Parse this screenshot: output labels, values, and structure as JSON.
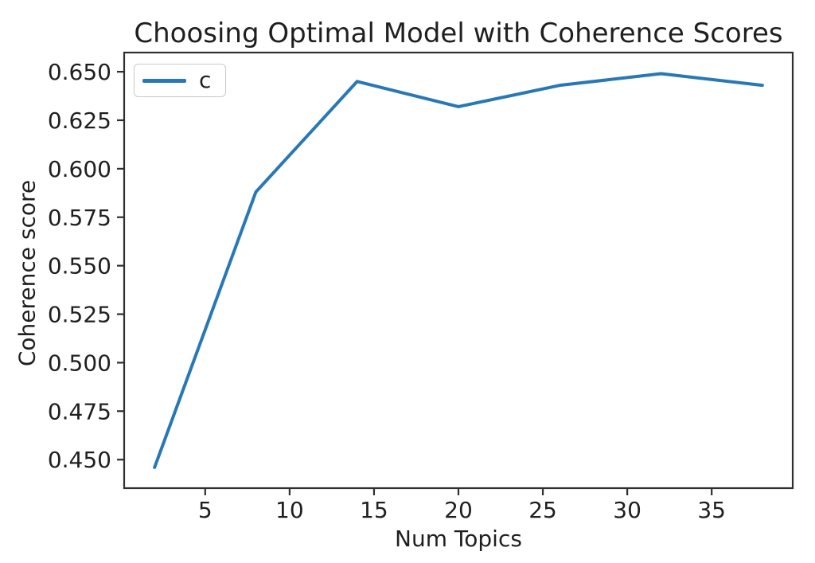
{
  "figure": {
    "background": "#ffffff"
  },
  "chart_data": {
    "type": "line",
    "title": "Choosing Optimal Model with Coherence Scores",
    "xlabel": "Num Topics",
    "ylabel": "Coherence score",
    "series": [
      {
        "name": "c",
        "color": "#2878b5",
        "x": [
          2,
          8,
          14,
          20,
          26,
          32,
          38
        ],
        "y": [
          0.446,
          0.588,
          0.645,
          0.632,
          0.643,
          0.649,
          0.643
        ]
      }
    ],
    "xlim": [
      0.2,
      39.8
    ],
    "ylim": [
      0.4353,
      0.6599
    ],
    "xticks": [
      5,
      10,
      15,
      20,
      25,
      30,
      35
    ],
    "xtick_labels": [
      "5",
      "10",
      "15",
      "20",
      "25",
      "30",
      "35"
    ],
    "yticks": [
      0.45,
      0.475,
      0.5,
      0.525,
      0.55,
      0.575,
      0.6,
      0.625,
      0.65
    ],
    "ytick_labels": [
      "0.450",
      "0.475",
      "0.500",
      "0.525",
      "0.550",
      "0.575",
      "0.600",
      "0.625",
      "0.650"
    ],
    "grid": false,
    "legend_position": "upper left",
    "axis_color": "#2f2f2f",
    "text_color": "#1f1f1f"
  }
}
